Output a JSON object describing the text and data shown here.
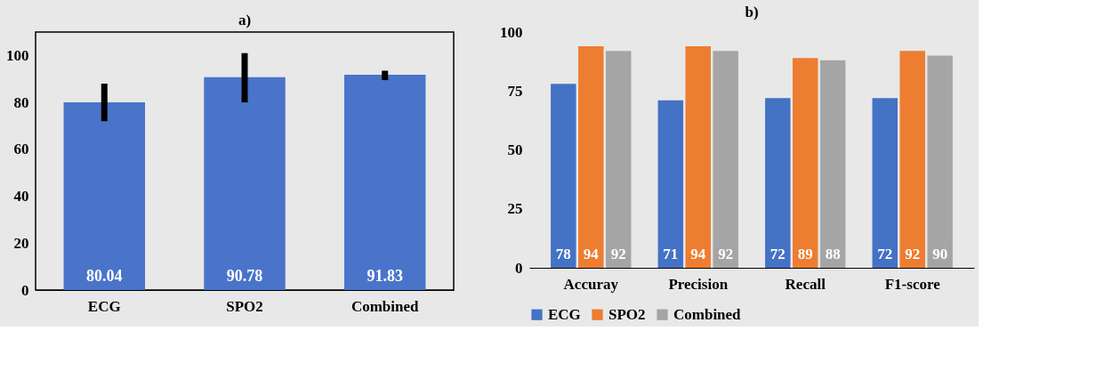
{
  "chart_data": [
    {
      "type": "bar",
      "title": "a)",
      "categories": [
        "ECG",
        "SPO2",
        "Combined"
      ],
      "values": [
        80.04,
        90.78,
        91.83
      ],
      "color": "#4a74c9",
      "errors": [
        [
          72,
          88
        ],
        [
          80,
          101
        ],
        [
          89.5,
          93.5
        ]
      ],
      "ylim": [
        0,
        110
      ],
      "yticks": [
        0,
        20,
        40,
        60,
        80,
        100
      ],
      "grid": false,
      "data_labels": true,
      "legend": false
    },
    {
      "type": "bar",
      "title": "b)",
      "categories": [
        "Accuray",
        "Precision",
        "Recall",
        "F1-score"
      ],
      "series": [
        {
          "name": "ECG",
          "color": "#4472c4",
          "values": [
            78,
            71,
            72,
            72
          ]
        },
        {
          "name": "SPO2",
          "color": "#ed7d31",
          "values": [
            94,
            94,
            89,
            92
          ]
        },
        {
          "name": "Combined",
          "color": "#a5a5a5",
          "values": [
            92,
            92,
            88,
            90
          ]
        }
      ],
      "ylim": [
        0,
        100
      ],
      "yticks": [
        0,
        25,
        50,
        75,
        100
      ],
      "grid": false,
      "data_labels": true,
      "legend": "bottom"
    }
  ]
}
